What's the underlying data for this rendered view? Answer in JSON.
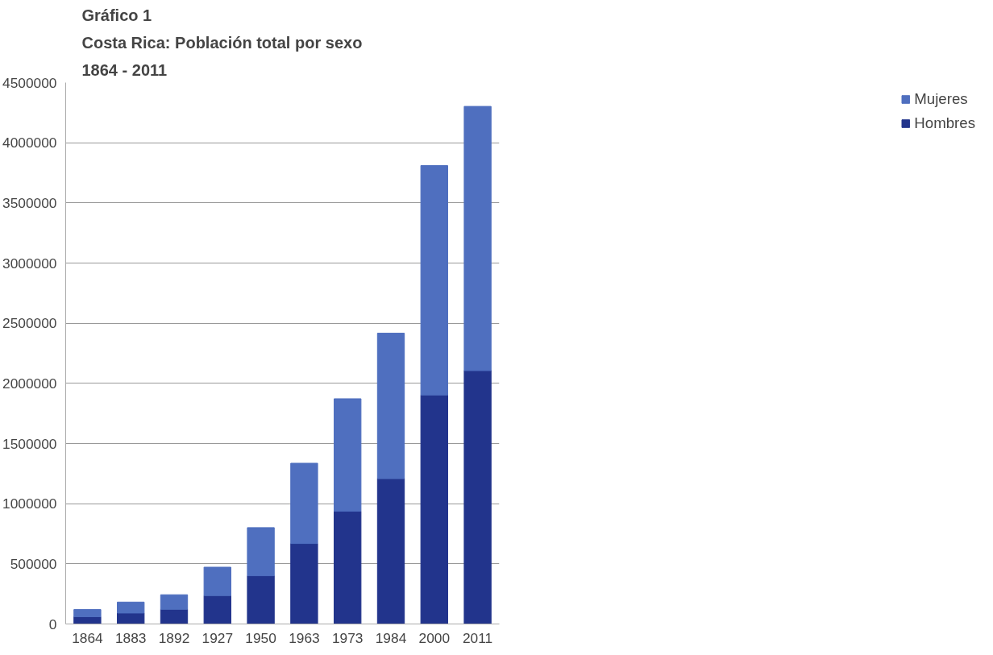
{
  "chart_data": {
    "type": "bar",
    "title": "Gráfico 1",
    "subtitle": "Costa Rica: Población total por sexo",
    "annotations": [
      "1864 - 2011"
    ],
    "categories": [
      "1864",
      "1883",
      "1892",
      "1927",
      "1950",
      "1963",
      "1973",
      "1984",
      "2000",
      "2011"
    ],
    "stacked": true,
    "series": [
      {
        "name": "Hombres",
        "color": "#22348c",
        "values": [
          60000,
          91000,
          122000,
          236000,
          401000,
          669000,
          937000,
          1208000,
          1903000,
          2106000
        ]
      },
      {
        "name": "Mujeres",
        "color": "#4f6fbf",
        "values": [
          60000,
          91000,
          121000,
          236000,
          400000,
          667000,
          935000,
          1209000,
          1907000,
          2196000
        ]
      }
    ],
    "ylim": [
      0,
      4500000
    ],
    "yticks": [
      0,
      500000,
      1000000,
      1500000,
      2000000,
      2500000,
      3000000,
      3500000,
      4000000,
      4500000
    ],
    "grid": "y",
    "legend": "right"
  }
}
